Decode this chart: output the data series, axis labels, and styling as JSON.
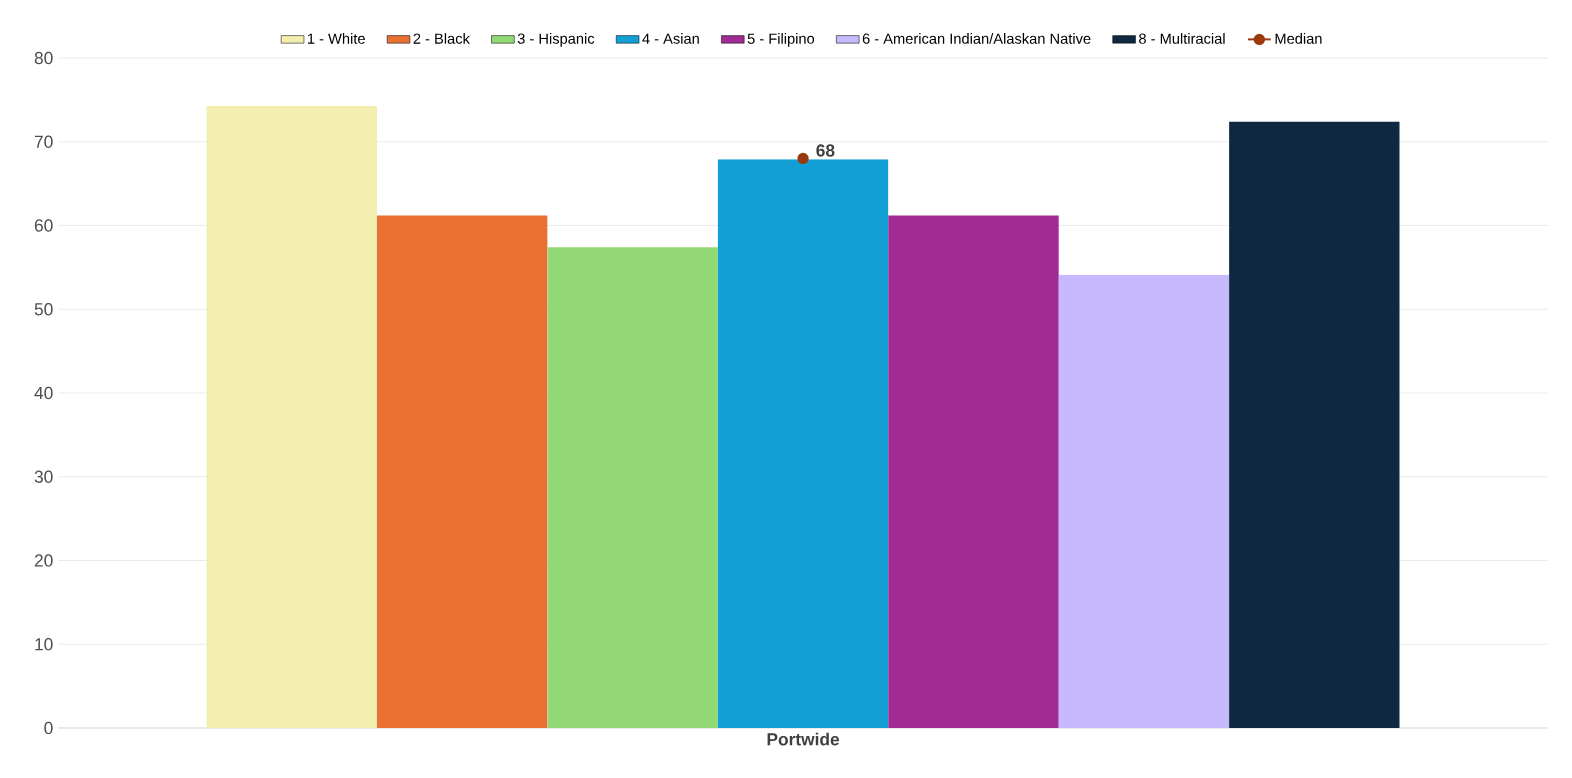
{
  "chart_data": {
    "type": "bar",
    "categories": [
      "Portwide"
    ],
    "series": [
      {
        "name": "1 - White",
        "color": "#f2eeb0",
        "values": [
          74.3
        ]
      },
      {
        "name": "2 - Black",
        "color": "#e97132",
        "values": [
          61.2
        ]
      },
      {
        "name": "3 - Hispanic",
        "color": "#92d975",
        "values": [
          57.4
        ]
      },
      {
        "name": "4 - Asian",
        "color": "#119fd6",
        "values": [
          67.9
        ]
      },
      {
        "name": "5 - Filipino",
        "color": "#a02b93",
        "values": [
          61.2
        ]
      },
      {
        "name": "6 - American Indian/Alaskan Native",
        "color": "#c8b8fd",
        "values": [
          54.1
        ]
      },
      {
        "name": "8 - Multiracial",
        "color": "#0e2841",
        "values": [
          72.4
        ]
      },
      {
        "name": "Median",
        "type": "line",
        "color": "#9b3a0e",
        "marker": "circle",
        "values": [
          68
        ],
        "value_labels": [
          "68"
        ]
      }
    ],
    "ylim": [
      0,
      80
    ],
    "yticks": [
      0,
      10,
      20,
      30,
      40,
      50,
      60,
      70,
      80
    ],
    "grid": "y",
    "legend": "top"
  }
}
